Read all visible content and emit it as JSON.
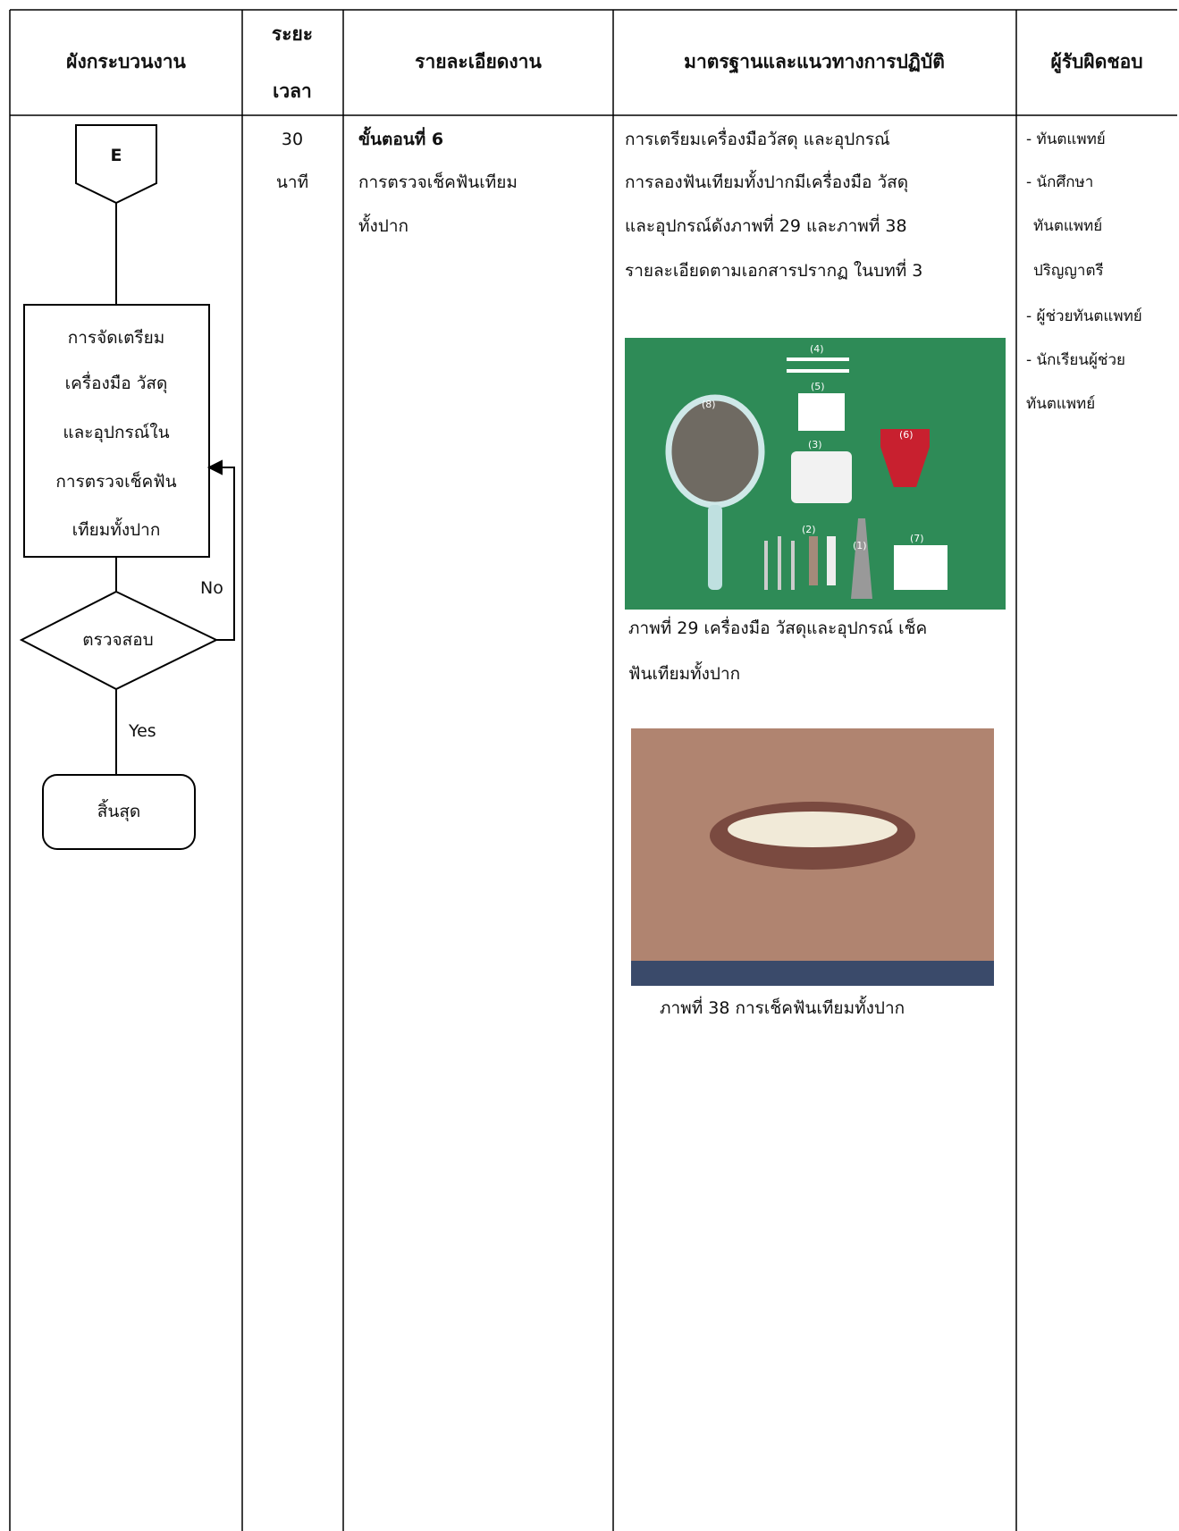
{
  "header": {
    "columns": [
      {
        "lines": [
          "ผังกระบวนงาน"
        ]
      },
      {
        "lines": [
          "ระยะ",
          "เวลา"
        ]
      },
      {
        "lines": [
          "รายละเอียดงาน"
        ]
      },
      {
        "lines": [
          "มาตรฐานและแนวทางการปฏิบัติ"
        ]
      },
      {
        "lines": [
          "ผู้รับผิดชอบ"
        ]
      }
    ]
  },
  "flowchart": {
    "connector": "E",
    "process": [
      "การจัดเตรียม",
      "เครื่องมือ วัสดุ",
      "และอุปกรณ์ใน",
      "การตรวจเช็คฟัน",
      "เทียมทั้งปาก"
    ],
    "decision": "ตรวจสอบ",
    "no_label": "No",
    "yes_label": "Yes",
    "terminator": "สิ้นสุด"
  },
  "duration": [
    "30",
    "นาที"
  ],
  "details": {
    "step": "ขั้นตอนที่ 6",
    "lines": [
      "การตรวจเช็คฟันเทียม",
      "ทั้งปาก"
    ]
  },
  "standards": {
    "lines": [
      "การเตรียมเครื่องมือวัสดุ และอุปกรณ์",
      "การลองฟันเทียมทั้งปากมีเครื่องมือ วัสดุ",
      "และอุปกรณ์ดังภาพที่ 29 และภาพที่ 38",
      "รายละเอียดตามเอกสารปรากฏ ในบทที่ 3"
    ],
    "figure_29": {
      "labels": [
        "(1)",
        "(2)",
        "(3)",
        "(4)",
        "(5)",
        "(6)",
        "(7)",
        "(8)"
      ],
      "caption": [
        "ภาพที่ 29 เครื่องมือ วัสดุและอุปกรณ์ เช็ค",
        "ฟันเทียมทั้งปาก"
      ]
    },
    "figure_38": {
      "caption": "ภาพที่ 38 การเช็คฟันเทียมทั้งปาก"
    }
  },
  "responsible": [
    "- ทันตแพทย์",
    "- นักศึกษา",
    "ทันตแพทย์",
    "ปริญญาตรี",
    "- ผู้ช่วยทันตแพทย์",
    "- นักเรียนผู้ช่วย",
    "ทันตแพทย์"
  ]
}
